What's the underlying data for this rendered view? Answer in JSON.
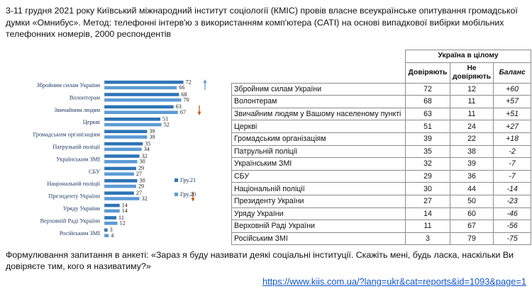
{
  "intro": "3-11 грудня 2021 року Київський міжнародний інститут соціології (КМІС) провів власне всеукраїнське опитування громадської думки «Омнибус». Метод: телефонні інтерв'ю з використанням комп'ютера (CATI) на основі випадкової вибірки мобільних телефонних номерів, 2000 респондентів",
  "chart_data": {
    "type": "bar",
    "orientation": "horizontal",
    "categories": [
      "Збройним силам України",
      "Волонтерам",
      "Звичайним людям",
      "Церкві",
      "Громадським організаціям",
      "Патрульній поліції",
      "Українським ЗМІ",
      "СБУ",
      "Національній поліції",
      "Президенту України",
      "Уряду України",
      "Верховній Раді України",
      "Російським ЗМІ"
    ],
    "series": [
      {
        "name": "Гру.21",
        "color": "#2e75b6",
        "values": [
          72,
          68,
          63,
          51,
          39,
          35,
          32,
          29,
          30,
          27,
          14,
          11,
          3
        ]
      },
      {
        "name": "Гру.20",
        "color": "#5b9bd5",
        "values": [
          66,
          70,
          67,
          52,
          39,
          34,
          30,
          27,
          29,
          32,
          14,
          12,
          4
        ]
      }
    ],
    "trend": [
      {
        "index": 0,
        "direction": "up",
        "color": "#5b9bd5"
      },
      {
        "index": 2,
        "direction": "down",
        "color": "#c55a11"
      },
      {
        "index": 9,
        "direction": "down",
        "color": "#c55a11"
      }
    ],
    "xlim": [
      0,
      80
    ],
    "legend": "right"
  },
  "table": {
    "group_header": "Україна в цілому",
    "col_trust": "Довіряють",
    "col_distrust": "Не довіряють",
    "col_balance": "Баланс",
    "rows": [
      {
        "name": "Збройним силам України",
        "trust": "72",
        "distrust": "12",
        "balance": "+60"
      },
      {
        "name": "Волонтерам",
        "trust": "68",
        "distrust": "11",
        "balance": "+57"
      },
      {
        "name": "Звичайним людям у Вашому населеному пункті",
        "trust": "63",
        "distrust": "11",
        "balance": "+51"
      },
      {
        "name": "Церкві",
        "trust": "51",
        "distrust": "24",
        "balance": "+27"
      },
      {
        "name": "Громадським організаціям",
        "trust": "39",
        "distrust": "22",
        "balance": "+18"
      },
      {
        "name": "Патрульній поліції",
        "trust": "35",
        "distrust": "38",
        "balance": "-2"
      },
      {
        "name": "Українським ЗМІ",
        "trust": "32",
        "distrust": "39",
        "balance": "-7"
      },
      {
        "name": "СБУ",
        "trust": "29",
        "distrust": "36",
        "balance": "-7"
      },
      {
        "name": "Національній поліції",
        "trust": "30",
        "distrust": "44",
        "balance": "-14"
      },
      {
        "name": "Президенту України",
        "trust": "27",
        "distrust": "50",
        "balance": "-23"
      },
      {
        "name": "Уряду України",
        "trust": "14",
        "distrust": "60",
        "balance": "-46"
      },
      {
        "name": "Верховній Раді України",
        "trust": "11",
        "distrust": "67",
        "balance": "-56"
      },
      {
        "name": "Російським ЗМІ",
        "trust": "3",
        "distrust": "79",
        "balance": "-75"
      }
    ]
  },
  "question": "Формулювання запитання в анкеті: «Зараз я буду називати деякі соціальні інституції. Скажіть мені, будь ласка, наскільки Ви довіряєте тим, кого я називатиму?»",
  "link": "https://www.kiis.com.ua/?lang=ukr&cat=reports&id=1093&page=1"
}
